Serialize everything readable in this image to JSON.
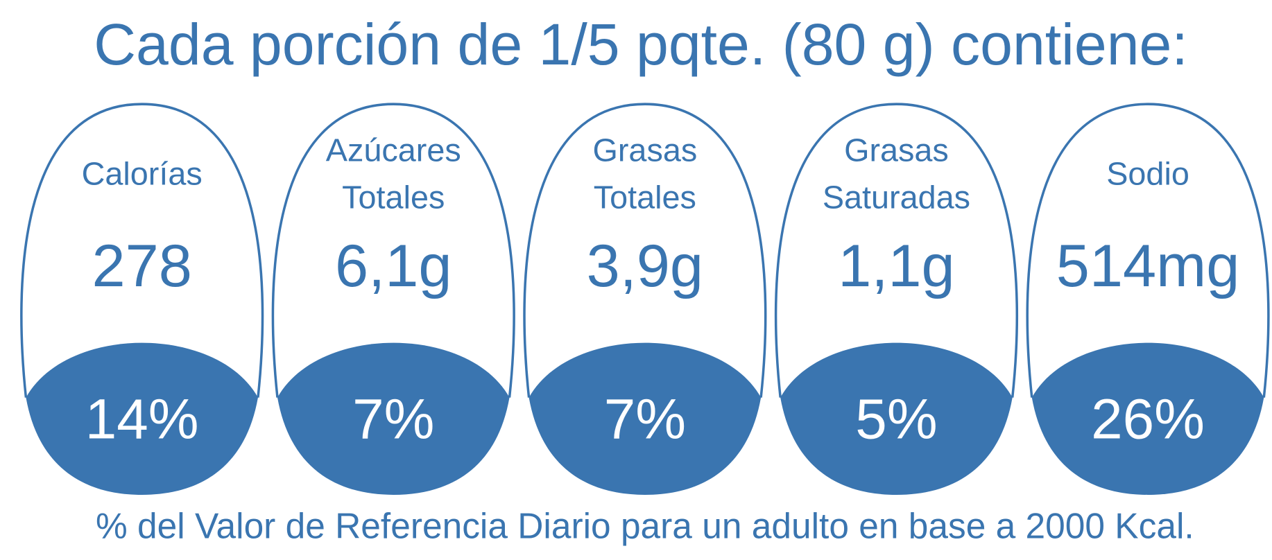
{
  "header": {
    "title": "Cada porción de 1/5 pqte. (80 g) contiene:"
  },
  "items": [
    {
      "label": [
        "Calorías"
      ],
      "amount": "278",
      "percent": "14%"
    },
    {
      "label": [
        "Azúcares",
        "Totales"
      ],
      "amount": "6,1g",
      "percent": "7%"
    },
    {
      "label": [
        "Grasas",
        "Totales"
      ],
      "amount": "3,9g",
      "percent": "7%"
    },
    {
      "label": [
        "Grasas",
        "Saturadas"
      ],
      "amount": "1,1g",
      "percent": "5%"
    },
    {
      "label": [
        "Sodio"
      ],
      "amount": "514mg",
      "percent": "26%"
    }
  ],
  "footer": "% del Valor de Referencia Diario para un adulto en base a 2000 Kcal."
}
